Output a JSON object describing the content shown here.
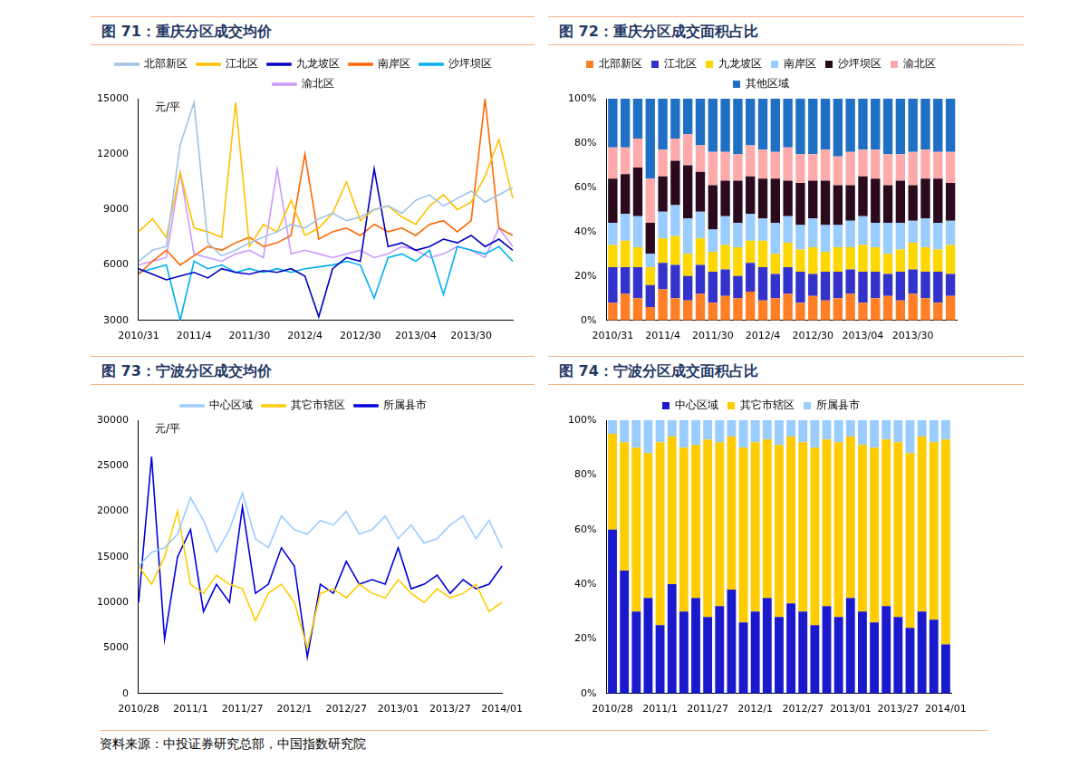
{
  "source": "资料来源：中投证券研究总部，中国指数研究院",
  "chart_data": [
    {
      "type": "line",
      "title": "图 71：重庆分区成交均价",
      "ylabel": "元/平",
      "legend": "top",
      "grid": false,
      "categories": [
        "2010/31",
        null,
        null,
        null,
        "2011/4",
        null,
        null,
        null,
        "2011/30",
        null,
        null,
        null,
        "2012/4",
        null,
        null,
        null,
        "2012/30",
        null,
        null,
        null,
        "2013/04",
        null,
        null,
        null,
        "2013/30",
        null,
        null,
        null
      ],
      "ylim": [
        3000,
        15000
      ],
      "yticks": [
        3000,
        6000,
        9000,
        12000,
        15000
      ],
      "series": [
        {
          "name": "北部新区",
          "color": "#9dc3e6",
          "values": [
            6200,
            6800,
            7000,
            12500,
            14800,
            7200,
            6500,
            6800,
            7200,
            7500,
            7800,
            8200,
            8000,
            8500,
            8800,
            8400,
            8600,
            9000,
            9200,
            8800,
            9500,
            9800,
            9200,
            9600,
            10000,
            9400,
            9800,
            10200
          ]
        },
        {
          "name": "江北区",
          "color": "#ffc000",
          "values": [
            7800,
            8500,
            7500,
            11000,
            8000,
            7800,
            7500,
            14800,
            7000,
            8200,
            7800,
            9500,
            7600,
            8000,
            8800,
            10500,
            8400,
            9000,
            9200,
            8600,
            8200,
            9200,
            9800,
            9000,
            9400,
            10800,
            12800,
            9600
          ]
        },
        {
          "name": "九龙坡区",
          "color": "#0000c0",
          "values": [
            5800,
            5500,
            5200,
            5400,
            5600,
            5300,
            5800,
            5600,
            5500,
            5700,
            5600,
            5800,
            5400,
            3200,
            5800,
            6400,
            6200,
            11200,
            7000,
            7200,
            6800,
            7000,
            7400,
            7200,
            7600,
            7000,
            7400,
            6800
          ]
        },
        {
          "name": "南岸区",
          "color": "#ff6600",
          "values": [
            5500,
            6200,
            6800,
            6000,
            6500,
            7000,
            6800,
            7200,
            7500,
            7000,
            7200,
            7600,
            12000,
            7400,
            7800,
            8000,
            7600,
            8200,
            7800,
            8000,
            7600,
            8200,
            8400,
            7800,
            8400,
            15000,
            8000,
            7600
          ]
        },
        {
          "name": "沙坪坝区",
          "color": "#00b0f0",
          "values": [
            5600,
            5800,
            6000,
            3000,
            6200,
            5800,
            6000,
            5600,
            5800,
            5600,
            5800,
            5600,
            5800,
            5900,
            6000,
            6200,
            6000,
            4200,
            6400,
            6600,
            6200,
            6800,
            4400,
            7000,
            6800,
            6600,
            7000,
            6200
          ]
        },
        {
          "name": "渝北区",
          "color": "#cc99ff",
          "values": [
            6000,
            6200,
            6400,
            11000,
            6600,
            6400,
            6200,
            6600,
            6800,
            6400,
            11200,
            6600,
            6800,
            6600,
            6400,
            6600,
            6800,
            6400,
            6600,
            7000,
            6800,
            6400,
            6600,
            7000,
            6800,
            6400,
            8000,
            7000
          ]
        }
      ]
    },
    {
      "type": "bar",
      "stacked": true,
      "title": "图 72：重庆分区成交面积占比",
      "legend": "top",
      "grid": false,
      "categories": [
        "2010/31",
        null,
        null,
        null,
        "2011/4",
        null,
        null,
        null,
        "2011/30",
        null,
        null,
        null,
        "2012/4",
        null,
        null,
        null,
        "2012/30",
        null,
        null,
        null,
        "2013/04",
        null,
        null,
        null,
        "2013/30",
        null,
        null,
        null
      ],
      "ylim": [
        0,
        100
      ],
      "yticks": [
        {
          "value": 0,
          "label": "0%"
        },
        {
          "value": 20,
          "label": "20%"
        },
        {
          "value": 40,
          "label": "40%"
        },
        {
          "value": 60,
          "label": "60%"
        },
        {
          "value": 80,
          "label": "80%"
        },
        {
          "value": 100,
          "label": "100%"
        }
      ],
      "series": [
        {
          "name": "北部新区",
          "color": "#ff7f27",
          "values": [
            8,
            12,
            10,
            6,
            14,
            10,
            9,
            12,
            8,
            11,
            10,
            13,
            9,
            10,
            12,
            8,
            11,
            9,
            10,
            12,
            8,
            10,
            11,
            9,
            12,
            10,
            8,
            11
          ]
        },
        {
          "name": "江北区",
          "color": "#3333cc",
          "values": [
            16,
            12,
            14,
            10,
            12,
            15,
            11,
            13,
            14,
            12,
            10,
            13,
            15,
            11,
            12,
            14,
            10,
            13,
            12,
            11,
            14,
            12,
            10,
            13,
            11,
            12,
            14,
            10
          ]
        },
        {
          "name": "九龙坡区",
          "color": "#ffd700",
          "values": [
            10,
            12,
            9,
            8,
            11,
            13,
            10,
            12,
            9,
            11,
            13,
            10,
            12,
            9,
            11,
            10,
            12,
            9,
            11,
            10,
            12,
            11,
            9,
            10,
            12,
            11,
            10,
            13
          ]
        },
        {
          "name": "南岸区",
          "color": "#99ccff",
          "values": [
            10,
            12,
            14,
            6,
            12,
            14,
            16,
            12,
            10,
            13,
            11,
            12,
            10,
            14,
            12,
            11,
            13,
            12,
            10,
            12,
            13,
            11,
            14,
            12,
            10,
            13,
            12,
            11
          ]
        },
        {
          "name": "沙坪坝区",
          "color": "#2b0a1e",
          "values": [
            20,
            18,
            22,
            14,
            16,
            20,
            24,
            18,
            20,
            16,
            19,
            17,
            18,
            20,
            16,
            19,
            17,
            20,
            18,
            16,
            18,
            20,
            17,
            19,
            16,
            18,
            20,
            17
          ]
        },
        {
          "name": "渝北区",
          "color": "#ffaaaa",
          "values": [
            14,
            12,
            13,
            20,
            12,
            10,
            14,
            12,
            15,
            13,
            12,
            14,
            13,
            12,
            15,
            13,
            12,
            14,
            13,
            15,
            12,
            13,
            14,
            12,
            15,
            13,
            12,
            14
          ]
        },
        {
          "name": "其他区域",
          "color": "#1f6fc5",
          "values": [
            22,
            22,
            18,
            36,
            23,
            18,
            16,
            21,
            24,
            24,
            25,
            21,
            23,
            24,
            22,
            25,
            25,
            23,
            26,
            24,
            23,
            23,
            25,
            25,
            24,
            23,
            24,
            24
          ]
        }
      ]
    },
    {
      "type": "line",
      "title": "图 73：宁波分区成交均价",
      "ylabel": "元/平",
      "legend": "top",
      "grid": false,
      "categories": [
        "2010/28",
        null,
        null,
        null,
        "2011/1",
        null,
        null,
        null,
        "2011/27",
        null,
        null,
        null,
        "2012/1",
        null,
        null,
        null,
        "2012/27",
        null,
        null,
        null,
        "2013/01",
        null,
        null,
        null,
        "2013/27",
        null,
        null,
        null,
        "2014/01"
      ],
      "ylim": [
        0,
        30000
      ],
      "yticks": [
        0,
        5000,
        10000,
        15000,
        20000,
        25000,
        30000
      ],
      "series": [
        {
          "name": "中心区域",
          "color": "#99ccff",
          "values": [
            14000,
            15500,
            16000,
            17500,
            21500,
            19000,
            15500,
            18000,
            22000,
            17000,
            16000,
            19500,
            18000,
            17500,
            19000,
            18500,
            20000,
            17500,
            18000,
            19500,
            17000,
            18500,
            16500,
            17000,
            18500,
            19500,
            17000,
            19000,
            16000
          ]
        },
        {
          "name": "其它市辖区",
          "color": "#ffcc00",
          "values": [
            14000,
            12000,
            15000,
            20000,
            12000,
            11000,
            13000,
            12000,
            11500,
            8000,
            11000,
            12000,
            10000,
            5000,
            11000,
            11500,
            10500,
            12000,
            11000,
            10500,
            12500,
            11000,
            10000,
            11500,
            10500,
            11000,
            12000,
            9000,
            10000
          ]
        },
        {
          "name": "所属县市",
          "color": "#0000dd",
          "values": [
            10000,
            26000,
            6000,
            15000,
            18000,
            9000,
            12000,
            10000,
            20500,
            11000,
            12000,
            16000,
            14000,
            4000,
            12000,
            11000,
            14500,
            12000,
            12500,
            12000,
            16000,
            11500,
            12000,
            13000,
            11000,
            12500,
            11500,
            12000,
            14000
          ]
        }
      ]
    },
    {
      "type": "bar",
      "stacked": true,
      "title": "图 74：宁波分区成交面积占比",
      "legend": "top",
      "grid": false,
      "categories": [
        "2010/28",
        null,
        null,
        null,
        "2011/1",
        null,
        null,
        null,
        "2011/27",
        null,
        null,
        null,
        "2012/1",
        null,
        null,
        null,
        "2012/27",
        null,
        null,
        null,
        "2013/01",
        null,
        null,
        null,
        "2013/27",
        null,
        null,
        null,
        "2014/01"
      ],
      "ylim": [
        0,
        100
      ],
      "yticks": [
        {
          "value": 0,
          "label": "0%"
        },
        {
          "value": 20,
          "label": "20%"
        },
        {
          "value": 40,
          "label": "40%"
        },
        {
          "value": 60,
          "label": "60%"
        },
        {
          "value": 80,
          "label": "80%"
        },
        {
          "value": 100,
          "label": "100%"
        }
      ],
      "series": [
        {
          "name": "中心区域",
          "color": "#1a1acc",
          "values": [
            60,
            45,
            30,
            35,
            25,
            40,
            30,
            35,
            28,
            32,
            38,
            26,
            30,
            35,
            28,
            33,
            30,
            25,
            32,
            28,
            35,
            30,
            26,
            32,
            28,
            24,
            30,
            27,
            18
          ]
        },
        {
          "name": "其它市辖区",
          "color": "#ffcc00",
          "values": [
            35,
            47,
            60,
            53,
            67,
            54,
            60,
            56,
            65,
            60,
            56,
            64,
            62,
            58,
            63,
            61,
            62,
            65,
            61,
            64,
            59,
            61,
            64,
            61,
            64,
            64,
            64,
            65,
            75
          ]
        },
        {
          "name": "所属县市",
          "color": "#99ccff",
          "values": [
            5,
            8,
            10,
            12,
            8,
            6,
            10,
            9,
            7,
            8,
            6,
            10,
            8,
            7,
            9,
            6,
            8,
            10,
            7,
            8,
            6,
            9,
            10,
            7,
            8,
            12,
            6,
            8,
            7
          ]
        }
      ]
    }
  ]
}
